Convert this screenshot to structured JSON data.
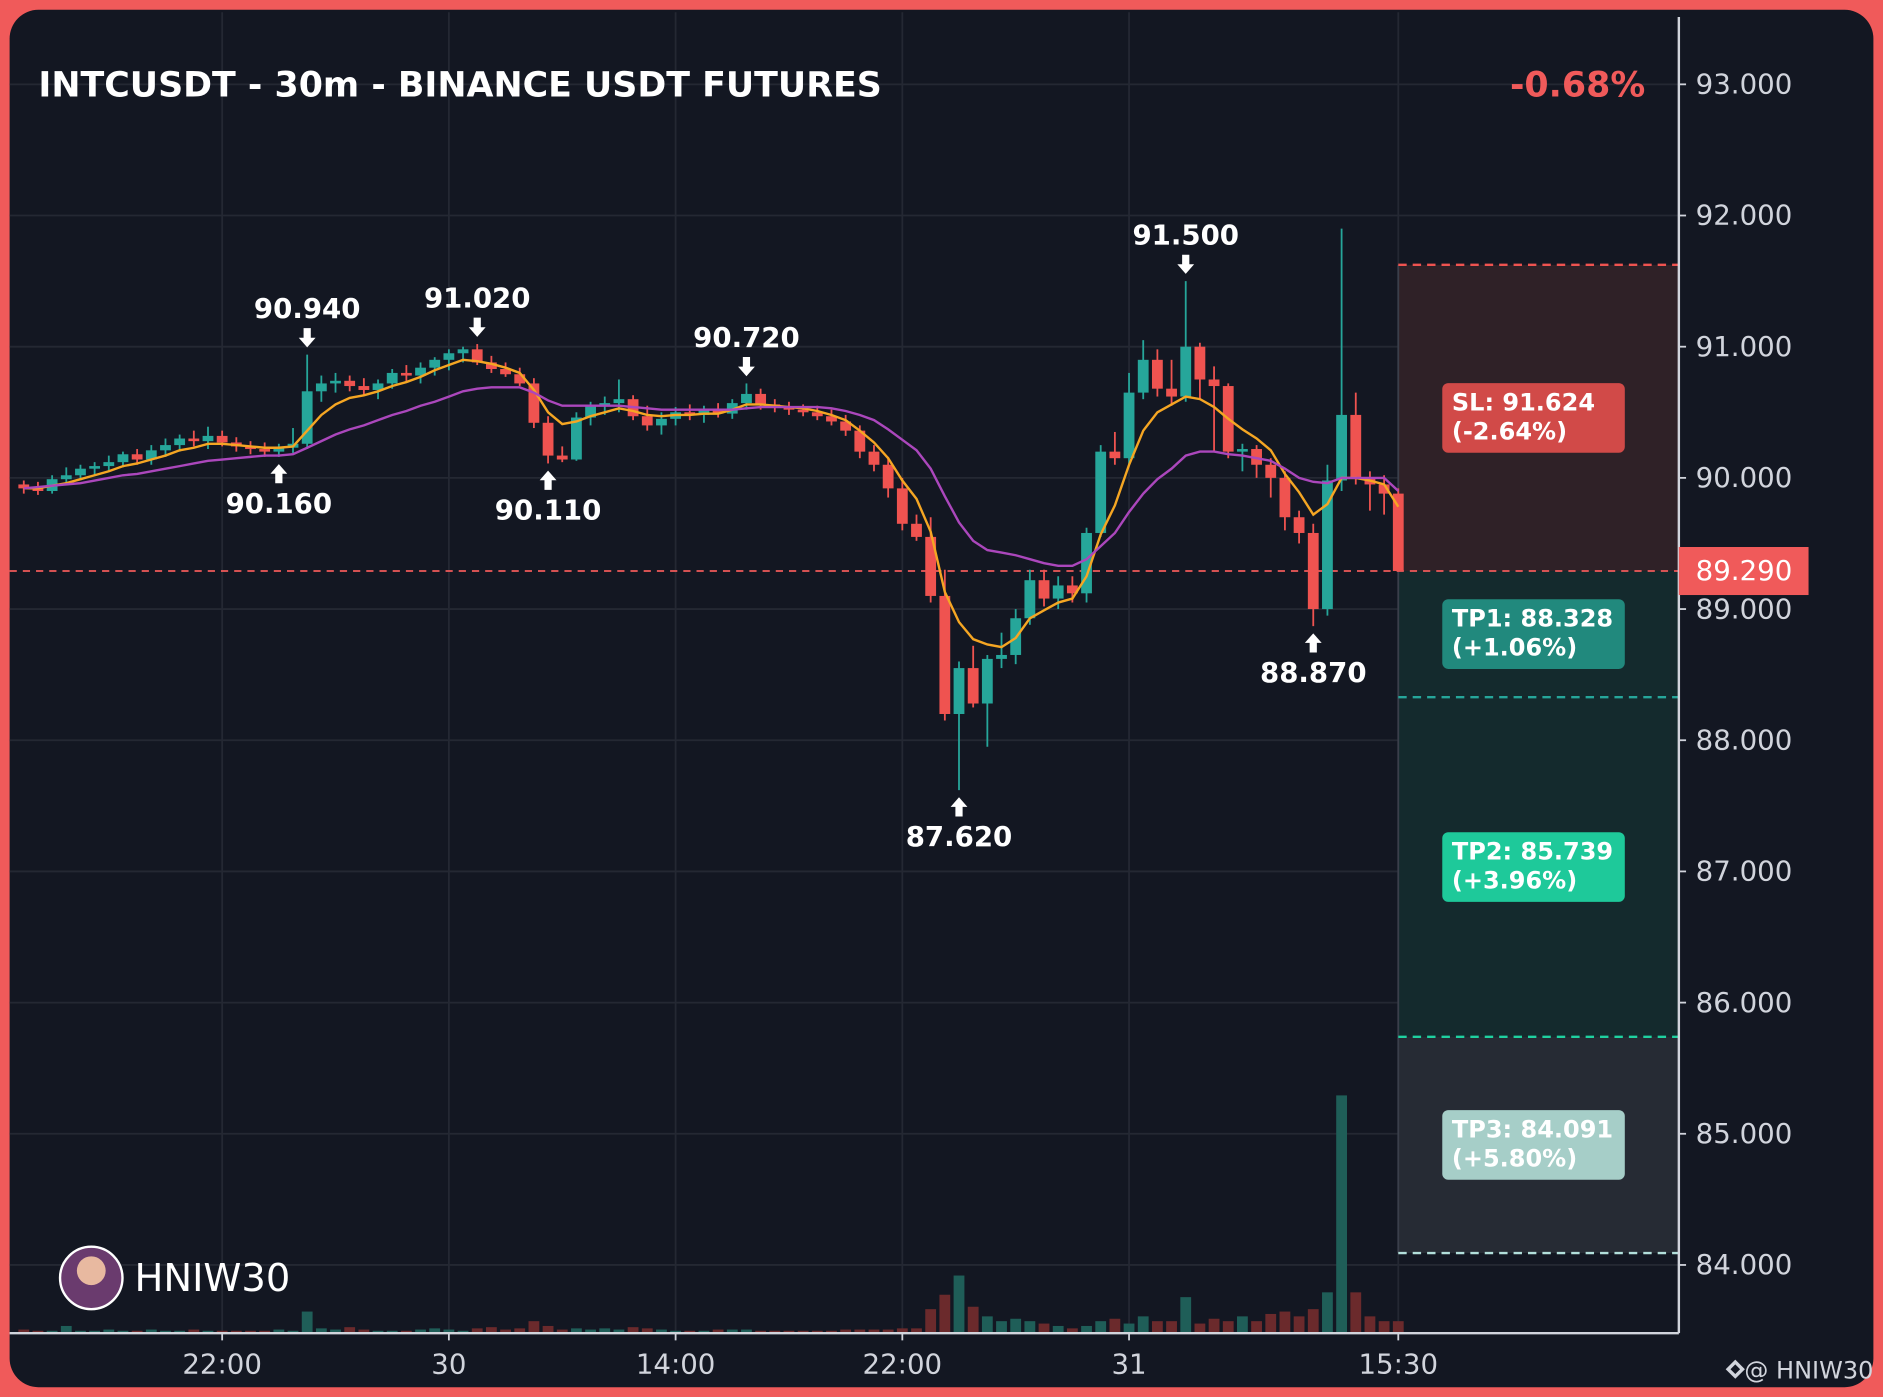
{
  "chart_data": {
    "type": "candlestick",
    "title": "INTCUSDT - 30m - BINANCE USDT FUTURES",
    "change": "-0.68%",
    "change_color": "#f05a5a",
    "up_color": "#26a69a",
    "down_color": "#ef5350",
    "grid": true,
    "xlim": [
      -1,
      116.8
    ],
    "ylim": [
      83.48,
      93.55
    ],
    "xticks": [
      {
        "value": 14,
        "label": "22:00"
      },
      30,
      {
        "value": 46,
        "label": "14:00"
      },
      {
        "value": 62,
        "label": "22:00"
      },
      {
        "value": 78,
        "label": "31"
      },
      {
        "value": 97,
        "label": "15:30"
      }
    ],
    "yticks": [
      {
        "value": 93,
        "label": "93.000"
      },
      {
        "value": 92,
        "label": "92.000"
      },
      {
        "value": 91,
        "label": "91.000"
      },
      {
        "value": 90,
        "label": "90.000"
      },
      {
        "value": 89,
        "label": "89.000"
      },
      {
        "value": 88,
        "label": "88.000"
      },
      {
        "value": 87,
        "label": "87.000"
      },
      {
        "value": 86,
        "label": "86.000"
      },
      {
        "value": 85,
        "label": "85.000"
      },
      {
        "value": 84,
        "label": "84.000"
      }
    ],
    "open": [
      89.95,
      89.92,
      89.9,
      89.99,
      90.02,
      90.07,
      90.09,
      90.12,
      90.18,
      90.14,
      90.21,
      90.25,
      90.3,
      90.28,
      90.32,
      90.27,
      90.24,
      90.22,
      90.2,
      90.23,
      90.26,
      90.66,
      90.72,
      90.74,
      90.7,
      90.67,
      90.72,
      90.8,
      90.78,
      90.84,
      90.9,
      90.95,
      90.98,
      90.88,
      90.83,
      90.79,
      90.72,
      90.42,
      90.17,
      90.14,
      90.46,
      90.55,
      90.57,
      90.6,
      90.47,
      90.4,
      90.45,
      90.5,
      90.48,
      90.52,
      90.49,
      90.57,
      90.64,
      90.56,
      90.54,
      90.52,
      90.5,
      90.47,
      90.43,
      90.36,
      90.2,
      90.1,
      89.92,
      89.65,
      89.55,
      89.1,
      88.2,
      88.55,
      88.28,
      88.62,
      88.65,
      88.93,
      89.22,
      89.08,
      89.18,
      89.12,
      89.58,
      90.2,
      90.15,
      90.65,
      90.9,
      90.68,
      90.62,
      91.0,
      90.75,
      90.7,
      90.2,
      90.22,
      90.1,
      90.0,
      89.7,
      89.58,
      89.0,
      89.98,
      90.48,
      90.0,
      89.95,
      89.88
    ],
    "high": [
      89.98,
      89.97,
      90.02,
      90.08,
      90.1,
      90.12,
      90.17,
      90.2,
      90.22,
      90.25,
      90.3,
      90.33,
      90.36,
      90.39,
      90.36,
      90.31,
      90.28,
      90.27,
      90.26,
      90.38,
      90.94,
      90.78,
      90.8,
      90.78,
      90.76,
      90.75,
      90.83,
      90.86,
      90.88,
      90.92,
      90.98,
      91.0,
      91.02,
      90.93,
      90.88,
      90.84,
      90.76,
      90.47,
      90.24,
      90.5,
      90.58,
      90.62,
      90.75,
      90.63,
      90.55,
      90.5,
      90.54,
      90.56,
      90.55,
      90.57,
      90.6,
      90.72,
      90.68,
      90.6,
      90.58,
      90.56,
      90.55,
      90.52,
      90.48,
      90.4,
      90.25,
      90.16,
      90.0,
      89.72,
      89.7,
      89.3,
      88.6,
      88.72,
      88.65,
      88.82,
      89.0,
      89.3,
      89.3,
      89.25,
      89.25,
      89.62,
      90.25,
      90.35,
      90.8,
      91.05,
      90.98,
      90.9,
      91.5,
      91.03,
      90.85,
      90.72,
      90.26,
      90.25,
      90.15,
      90.05,
      89.75,
      89.65,
      90.1,
      91.9,
      90.65,
      90.05,
      90.02,
      89.92
    ],
    "low": [
      89.88,
      89.87,
      89.88,
      89.95,
      89.98,
      90.02,
      90.05,
      90.08,
      90.1,
      90.1,
      90.16,
      90.2,
      90.24,
      90.22,
      90.24,
      90.2,
      90.18,
      90.16,
      90.16,
      90.19,
      90.22,
      90.58,
      90.65,
      90.66,
      90.63,
      90.6,
      90.68,
      90.73,
      90.72,
      90.78,
      90.82,
      90.88,
      90.86,
      90.8,
      90.77,
      90.7,
      90.38,
      90.11,
      90.12,
      90.13,
      90.4,
      90.48,
      90.5,
      90.44,
      90.36,
      90.33,
      90.4,
      90.44,
      90.42,
      90.46,
      90.45,
      90.52,
      90.52,
      90.5,
      90.48,
      90.47,
      90.44,
      90.4,
      90.32,
      90.15,
      90.05,
      89.85,
      89.6,
      89.52,
      89.05,
      88.15,
      87.62,
      88.25,
      87.95,
      88.55,
      88.58,
      88.88,
      89.02,
      89.0,
      89.05,
      89.05,
      89.55,
      90.1,
      90.1,
      90.6,
      90.62,
      90.55,
      90.58,
      90.6,
      90.2,
      90.15,
      90.05,
      90.0,
      89.85,
      89.6,
      89.5,
      88.87,
      88.95,
      89.9,
      89.95,
      89.75,
      89.72,
      89.29
    ],
    "close": [
      89.92,
      89.9,
      89.99,
      90.02,
      90.07,
      90.09,
      90.12,
      90.18,
      90.14,
      90.21,
      90.25,
      90.3,
      90.28,
      90.32,
      90.27,
      90.24,
      90.22,
      90.2,
      90.23,
      90.26,
      90.66,
      90.72,
      90.74,
      90.7,
      90.67,
      90.72,
      90.8,
      90.78,
      90.84,
      90.9,
      90.95,
      90.98,
      90.88,
      90.83,
      90.79,
      90.72,
      90.42,
      90.17,
      90.14,
      90.46,
      90.55,
      90.57,
      90.6,
      90.47,
      90.4,
      90.45,
      90.5,
      90.48,
      90.52,
      90.49,
      90.57,
      90.64,
      90.56,
      90.54,
      90.52,
      90.5,
      90.47,
      90.43,
      90.36,
      90.2,
      90.1,
      89.92,
      89.65,
      89.55,
      89.1,
      88.2,
      88.55,
      88.28,
      88.62,
      88.65,
      88.93,
      89.22,
      89.08,
      89.18,
      89.12,
      89.58,
      90.2,
      90.15,
      90.65,
      90.9,
      90.68,
      90.62,
      91.0,
      90.75,
      90.7,
      90.2,
      90.22,
      90.1,
      90.0,
      89.7,
      89.58,
      89.0,
      89.98,
      90.48,
      90.0,
      89.95,
      89.88,
      89.29
    ],
    "volume": {
      "up_color": "#1f5e58",
      "down_color": "#6b2a2c",
      "values": [
        3,
        2,
        2,
        6,
        2,
        2,
        3,
        2,
        2,
        3,
        2,
        2,
        3,
        2,
        2,
        2,
        2,
        2,
        3,
        2,
        18,
        4,
        3,
        5,
        3,
        2,
        2,
        2,
        3,
        4,
        3,
        2,
        4,
        5,
        3,
        4,
        10,
        6,
        3,
        4,
        3,
        4,
        3,
        5,
        4,
        3,
        2,
        2,
        2,
        3,
        3,
        3,
        2,
        2,
        2,
        2,
        2,
        2,
        3,
        3,
        3,
        3,
        4,
        4,
        20,
        32,
        48,
        22,
        14,
        10,
        12,
        10,
        8,
        6,
        4,
        6,
        10,
        12,
        8,
        14,
        10,
        10,
        30,
        8,
        12,
        10,
        14,
        10,
        16,
        18,
        14,
        20,
        34,
        198,
        34,
        14,
        10,
        10
      ]
    },
    "ma": [
      {
        "color": "#f5a623",
        "values": [
          89.92,
          89.92,
          89.94,
          89.96,
          89.99,
          90.02,
          90.05,
          90.09,
          90.11,
          90.14,
          90.17,
          90.21,
          90.23,
          90.26,
          90.26,
          90.25,
          90.24,
          90.23,
          90.23,
          90.24,
          90.36,
          90.48,
          90.56,
          90.61,
          90.63,
          90.66,
          90.7,
          90.73,
          90.77,
          90.82,
          90.86,
          90.9,
          90.89,
          90.87,
          90.84,
          90.8,
          90.67,
          90.5,
          90.41,
          90.43,
          90.47,
          90.5,
          90.53,
          90.51,
          90.48,
          90.47,
          90.48,
          90.48,
          90.49,
          90.49,
          90.52,
          90.56,
          90.56,
          90.55,
          90.54,
          90.53,
          90.51,
          90.48,
          90.44,
          90.36,
          90.27,
          90.15,
          89.98,
          89.84,
          89.59,
          89.13,
          88.9,
          88.77,
          88.73,
          88.71,
          88.78,
          88.93,
          88.99,
          89.05,
          89.08,
          89.25,
          89.57,
          89.79,
          90.1,
          90.36,
          90.5,
          90.56,
          90.62,
          90.6,
          90.54,
          90.45,
          90.37,
          90.3,
          90.21,
          90.03,
          89.89,
          89.72,
          89.8,
          90.0,
          90.0,
          89.98,
          89.95,
          89.78
        ]
      },
      {
        "color": "#ab47bc",
        "values": [
          89.92,
          89.93,
          89.94,
          89.95,
          89.96,
          89.98,
          90.0,
          90.02,
          90.03,
          90.05,
          90.07,
          90.09,
          90.11,
          90.13,
          90.14,
          90.15,
          90.16,
          90.17,
          90.17,
          90.18,
          90.23,
          90.28,
          90.33,
          90.37,
          90.4,
          90.44,
          90.48,
          90.51,
          90.55,
          90.58,
          90.62,
          90.66,
          90.68,
          90.69,
          90.69,
          90.69,
          90.65,
          90.59,
          90.55,
          90.55,
          90.55,
          90.55,
          90.55,
          90.54,
          90.53,
          90.52,
          90.52,
          90.52,
          90.52,
          90.52,
          90.52,
          90.53,
          90.54,
          90.54,
          90.54,
          90.54,
          90.54,
          90.53,
          90.51,
          90.48,
          90.44,
          90.37,
          90.29,
          90.21,
          90.07,
          89.86,
          89.66,
          89.52,
          89.45,
          89.43,
          89.41,
          89.38,
          89.35,
          89.33,
          89.33,
          89.38,
          89.48,
          89.58,
          89.74,
          89.88,
          89.99,
          90.07,
          90.17,
          90.2,
          90.2,
          90.18,
          90.17,
          90.15,
          90.13,
          90.07,
          90.0,
          89.97,
          89.96,
          90.0,
          90.0,
          90.0,
          90.0,
          89.9
        ]
      }
    ],
    "markers": [
      {
        "x": 18,
        "value": 90.16,
        "label": "90.160",
        "side": "low"
      },
      {
        "x": 20,
        "value": 90.94,
        "label": "90.940",
        "side": "high"
      },
      {
        "x": 32,
        "value": 91.02,
        "label": "91.020",
        "side": "high"
      },
      {
        "x": 37,
        "value": 90.11,
        "label": "90.110",
        "side": "low"
      },
      {
        "x": 51,
        "value": 90.72,
        "label": "90.720",
        "side": "high"
      },
      {
        "x": 66,
        "value": 87.62,
        "label": "87.620",
        "side": "low"
      },
      {
        "x": 82,
        "value": 91.5,
        "label": "91.500",
        "side": "high"
      },
      {
        "x": 91,
        "value": 88.87,
        "label": "88.870",
        "side": "low"
      }
    ],
    "price_line": {
      "value": 89.29,
      "label": "89.290",
      "color": "#f05a5a"
    },
    "position": {
      "start": 97,
      "levels": [
        {
          "value": 91.624,
          "label": "SL: 91.624",
          "pct": "(-2.64%)",
          "color": "#ef5350",
          "fill": "#2f2127",
          "box": "#d14a48"
        },
        {
          "value": 88.328,
          "label": "TP1: 88.328",
          "pct": "(+1.06%)",
          "color": "#26a69a",
          "fill": "#142a2d",
          "box": "#21897d"
        },
        {
          "value": 85.739,
          "label": "TP2: 85.739",
          "pct": "(+3.96%)",
          "color": "#1fd1a0",
          "fill": "#142a2d",
          "box": "#1ec99a"
        },
        {
          "value": 84.091,
          "label": "TP3: 84.091",
          "pct": "(+5.80%)",
          "color": "#b2dfdb",
          "fill": "#262b34",
          "box": "#a6cec8"
        }
      ]
    },
    "watermark": "HNIW30",
    "footer": "@ HNIW30"
  }
}
